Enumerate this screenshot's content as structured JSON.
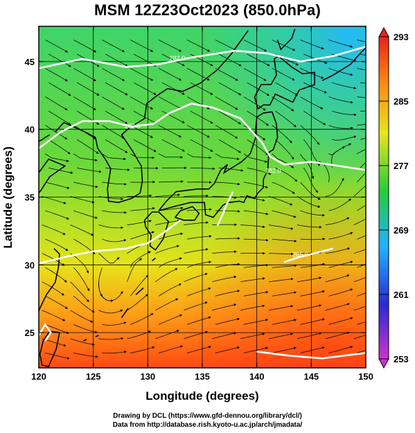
{
  "title": "MSM 12Z23Oct2023 (850.0hPa)",
  "footer": {
    "line1": "Drawing by DCL (https://www.gfd-dennou.org/library/dcl/)",
    "line2": "Data from http://database.rish.kyoto-u.ac.jp/arch/jmadata/"
  },
  "chart_data": {
    "type": "heatmap",
    "variable": "850hPa temperature with wind streamlines",
    "xlabel": "Longitude (degrees)",
    "ylabel": "Latitude  (degrees)",
    "xlim": [
      120,
      150
    ],
    "ylim": [
      22.4,
      47.6
    ],
    "xticks": [
      120,
      125,
      130,
      135,
      140,
      145,
      150
    ],
    "yticks": [
      25,
      30,
      35,
      40,
      45
    ],
    "grid": true,
    "colorbar": {
      "min": 253,
      "max": 293,
      "ticks": [
        253,
        261,
        269,
        277,
        285,
        293
      ],
      "colors": [
        "#cc33cc",
        "#2a2ad8",
        "#1fb4ff",
        "#22cc3a",
        "#e6e61a",
        "#ff8c10",
        "#e8241a"
      ]
    },
    "contours": [
      {
        "label": "285.0",
        "lon": 144.0,
        "lat": 30.8
      },
      {
        "label": "282.0",
        "lon": 141.5,
        "lat": 37.0
      },
      {
        "label": "282.0",
        "lon": 128.6,
        "lat": 40.3
      },
      {
        "label": "282.0",
        "lon": 132.7,
        "lat": 45.3
      }
    ],
    "vortices": [
      {
        "lon": 146.2,
        "lat": 35.8
      },
      {
        "lon": 126.4,
        "lat": 28.0
      }
    ]
  }
}
